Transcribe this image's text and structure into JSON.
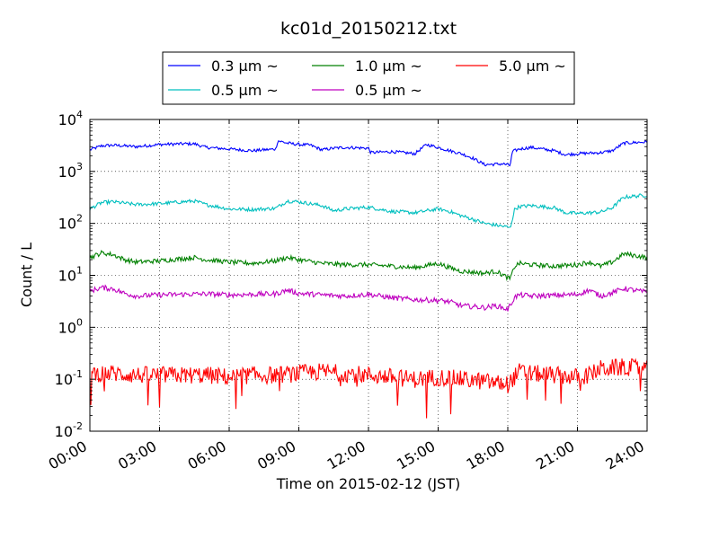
{
  "chart_data": {
    "type": "line",
    "title": "kc01d_20150212.txt",
    "xlabel": "Time on 2015-02-12 (JST)",
    "ylabel": "Count / L",
    "x_unit": "hour",
    "xlim": [
      0,
      24
    ],
    "ylim": [
      0.01,
      10000
    ],
    "yscale": "log",
    "grid": true,
    "legend_position": "top-center",
    "x_ticks": [
      "00:00",
      "03:00",
      "06:00",
      "09:00",
      "12:00",
      "15:00",
      "18:00",
      "21:00",
      "24:00"
    ],
    "y_ticks": [
      {
        "base": "10",
        "exp": "-2"
      },
      {
        "base": "10",
        "exp": "-1"
      },
      {
        "base": "10",
        "exp": "0"
      },
      {
        "base": "10",
        "exp": "1"
      },
      {
        "base": "10",
        "exp": "2"
      },
      {
        "base": "10",
        "exp": "3"
      },
      {
        "base": "10",
        "exp": "4"
      }
    ],
    "series": [
      {
        "name": "0.3 μm ~",
        "color": "#0000ff",
        "noise": 0.03,
        "x": [
          0,
          0.5,
          1,
          2,
          3,
          4,
          4.5,
          5,
          6,
          7,
          7.5,
          8,
          8.1,
          8.5,
          9,
          9.5,
          10,
          10.5,
          11,
          12,
          12.1,
          13,
          14,
          14.5,
          15,
          15.5,
          16,
          16.5,
          17,
          17.8,
          18.1,
          18.2,
          18.5,
          19,
          20,
          20.5,
          21,
          22,
          22.5,
          23,
          24
        ],
        "y": [
          2600,
          3100,
          3200,
          3000,
          3300,
          3400,
          3400,
          2900,
          2700,
          2500,
          2600,
          2700,
          3900,
          3500,
          3300,
          3200,
          2600,
          2800,
          2900,
          2800,
          2300,
          2400,
          2200,
          3300,
          2900,
          2500,
          2200,
          1800,
          1350,
          1400,
          1300,
          2400,
          2700,
          2900,
          2500,
          2100,
          2200,
          2300,
          2500,
          3500,
          3700
        ]
      },
      {
        "name": "0.5 μm ~",
        "color": "#00bfbf",
        "noise": 0.035,
        "x": [
          0,
          0.5,
          1,
          2,
          3,
          4,
          4.5,
          5,
          6,
          7,
          8,
          8.5,
          9,
          10,
          10.5,
          11,
          12,
          13,
          14,
          15,
          15.5,
          16,
          16.5,
          17,
          18,
          18.1,
          18.3,
          18.5,
          19,
          20,
          20.5,
          21,
          22,
          22.5,
          23,
          24
        ],
        "y": [
          190,
          250,
          260,
          230,
          240,
          260,
          270,
          230,
          190,
          185,
          195,
          270,
          260,
          220,
          175,
          190,
          205,
          170,
          160,
          190,
          170,
          140,
          120,
          100,
          85,
          80,
          190,
          210,
          220,
          200,
          160,
          155,
          165,
          200,
          320,
          350
        ]
      },
      {
        "name": "1.0 μm ~",
        "color": "#008000",
        "noise": 0.045,
        "x": [
          0,
          0.5,
          1,
          1.5,
          2,
          3,
          4,
          4.5,
          5,
          6,
          7,
          8,
          8.5,
          9,
          10,
          11,
          12,
          13,
          14,
          15,
          15.5,
          16,
          17,
          17.5,
          18,
          18.1,
          18.3,
          18.5,
          19,
          20,
          21,
          21.5,
          22,
          22.5,
          23,
          24
        ],
        "y": [
          22,
          27,
          25,
          20,
          18,
          19,
          21,
          22,
          20,
          18,
          17,
          19,
          22,
          20,
          17,
          16,
          16,
          15,
          14,
          17,
          14,
          12,
          11,
          12,
          9,
          8.5,
          15,
          17,
          16,
          15,
          16,
          18,
          15,
          18,
          26,
          22
        ]
      },
      {
        "name": "0.5 μm ~",
        "color": "#bf00bf",
        "noise": 0.05,
        "x": [
          0,
          0.5,
          1,
          1.5,
          2,
          3,
          4,
          5,
          6,
          7,
          8,
          8.5,
          9,
          10,
          11,
          12,
          13,
          14,
          15,
          15.5,
          16,
          17,
          17.5,
          18,
          18.3,
          18.5,
          19,
          20,
          21,
          21.5,
          22,
          22.5,
          23,
          24
        ],
        "y": [
          5.0,
          5.8,
          5.5,
          4.5,
          4.0,
          4.2,
          4.3,
          4.4,
          4.2,
          4.3,
          4.4,
          5.2,
          4.5,
          4.2,
          4.0,
          4.3,
          3.7,
          3.4,
          3.3,
          3.1,
          2.6,
          2.4,
          2.6,
          2.2,
          3.8,
          4.2,
          4.0,
          4.1,
          4.3,
          5.2,
          4.0,
          4.6,
          5.6,
          4.7
        ]
      },
      {
        "name": "5.0 μm ~",
        "color": "#ff0000",
        "noise": 0.17,
        "x": [
          0,
          1,
          2,
          3,
          4,
          5,
          6,
          7,
          8,
          9,
          10,
          11,
          12,
          13,
          14,
          15,
          16,
          17,
          18,
          18.5,
          19,
          20,
          21,
          21.5,
          22,
          23,
          24
        ],
        "y": [
          0.13,
          0.13,
          0.12,
          0.12,
          0.12,
          0.12,
          0.11,
          0.12,
          0.12,
          0.13,
          0.14,
          0.13,
          0.12,
          0.11,
          0.1,
          0.11,
          0.1,
          0.09,
          0.08,
          0.14,
          0.13,
          0.12,
          0.11,
          0.12,
          0.16,
          0.17,
          0.16
        ]
      }
    ]
  }
}
